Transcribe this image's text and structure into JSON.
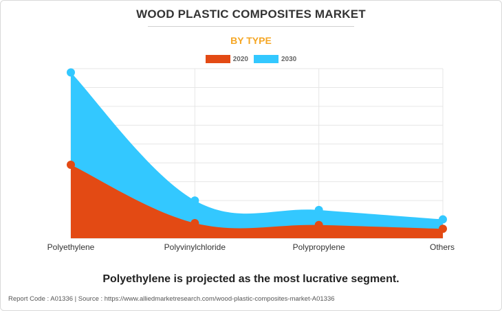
{
  "header": {
    "title": "WOOD PLASTIC COMPOSITES MARKET",
    "subtitle": "BY TYPE"
  },
  "colors": {
    "series_2020": "#e34a14",
    "series_2030": "#33c8ff",
    "subtitle": "#f5a623",
    "grid": "#e6e6e6"
  },
  "chart_data": {
    "type": "area",
    "categories": [
      "Polyethylene",
      "Polyvinylchloride",
      "Polypropylene",
      "Others"
    ],
    "series": [
      {
        "name": "2020",
        "values": [
          3.9,
          0.8,
          0.7,
          0.5
        ]
      },
      {
        "name": "2030",
        "values": [
          8.8,
          2.0,
          1.5,
          1.0
        ]
      }
    ],
    "ylim": [
      0,
      9
    ],
    "grid": true,
    "legend": "top-center",
    "xlabel": "",
    "ylabel": ""
  },
  "conclusion": "Polyethylene is projected as the most lucrative segment.",
  "footer": {
    "text": "Report Code : A01336  |  Source : https://www.alliedmarketresearch.com/wood-plastic-composites-market-A01336"
  }
}
